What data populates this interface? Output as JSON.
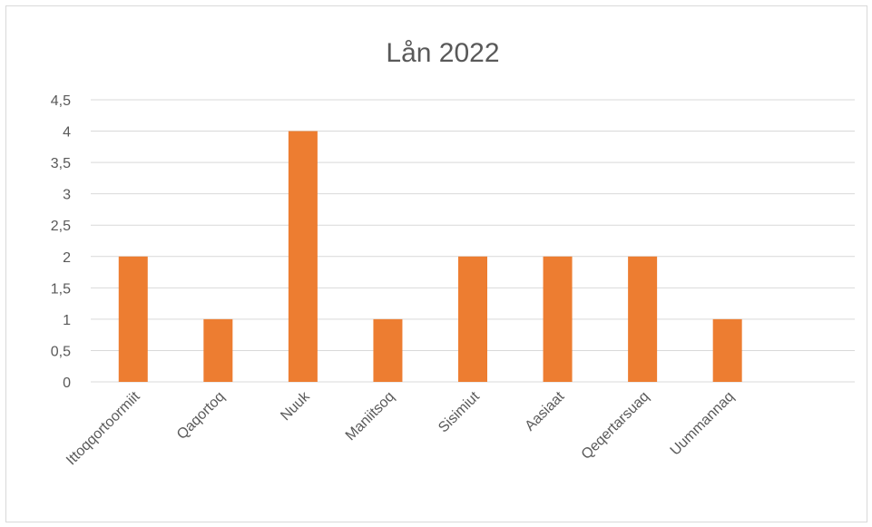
{
  "chart_data": {
    "type": "bar",
    "title": "Lån 2022",
    "categories": [
      "Ittoqqortoormiit",
      "Qaqortoq",
      "Nuuk",
      "Maniitsoq",
      "Sisimiut",
      "Aasiaat",
      "Qeqertarsuaq",
      "Uummannaq",
      ""
    ],
    "values": [
      2,
      1,
      4,
      1,
      2,
      2,
      2,
      1,
      null
    ],
    "yticks": [
      "0",
      "0,5",
      "1",
      "1,5",
      "2",
      "2,5",
      "3",
      "3,5",
      "4",
      "4,5"
    ],
    "ylim": [
      0,
      4.5
    ],
    "grid": true,
    "bar_color": "#ED7D31",
    "legend": "none"
  }
}
